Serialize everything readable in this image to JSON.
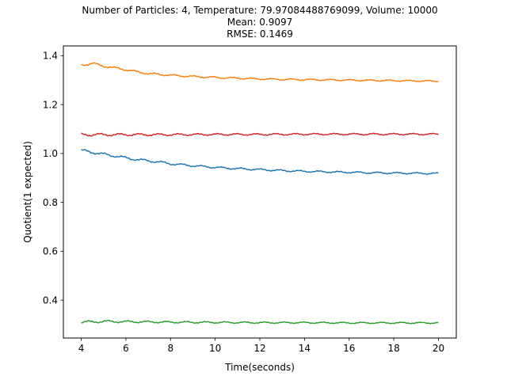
{
  "chart_data": {
    "type": "line",
    "title_lines": [
      "Number of Particles: 4, Temperature: 79.97084488769099, Volume: 10000",
      "Mean: 0.9097",
      "RMSE: 0.1469"
    ],
    "xlabel": "Time(seconds)",
    "ylabel": "Quotient(1 expected)",
    "xlim": [
      3.2,
      20.8
    ],
    "ylim": [
      0.245,
      1.44
    ],
    "xticks": [
      4,
      6,
      8,
      10,
      12,
      14,
      16,
      18,
      20
    ],
    "xtick_labels": [
      "4",
      "6",
      "8",
      "10",
      "12",
      "14",
      "16",
      "18",
      "20"
    ],
    "yticks": [
      0.4,
      0.6,
      0.8,
      1.0,
      1.2,
      1.4
    ],
    "ytick_labels": [
      "0.4",
      "0.6",
      "0.8",
      "1.0",
      "1.2",
      "1.4"
    ],
    "grid": false,
    "legend": "none",
    "x_range": [
      4,
      20
    ],
    "series": [
      {
        "color": "#ff7f0e",
        "x": [
          4,
          4.5,
          5,
          5.5,
          6,
          6.5,
          7,
          8,
          9,
          10,
          11,
          12,
          13,
          14,
          15,
          16,
          17,
          18,
          19,
          20
        ],
        "values": [
          1.363,
          1.368,
          1.358,
          1.35,
          1.343,
          1.334,
          1.327,
          1.32,
          1.315,
          1.311,
          1.308,
          1.305,
          1.303,
          1.302,
          1.301,
          1.3,
          1.299,
          1.298,
          1.297,
          1.296
        ],
        "noise": 0.006
      },
      {
        "color": "#d62728",
        "x": [
          4,
          5,
          6,
          8,
          10,
          12,
          14,
          16,
          18,
          20
        ],
        "values": [
          1.077,
          1.077,
          1.077,
          1.077,
          1.078,
          1.078,
          1.079,
          1.079,
          1.079,
          1.079
        ],
        "noise": 0.007
      },
      {
        "color": "#1f77b4",
        "x": [
          4,
          4.5,
          5,
          5.5,
          6,
          6.5,
          7,
          7.5,
          8,
          9,
          10,
          11,
          12,
          13,
          14,
          15,
          16,
          17,
          18,
          19,
          20
        ],
        "values": [
          1.012,
          1.005,
          0.997,
          0.99,
          0.982,
          0.975,
          0.97,
          0.965,
          0.958,
          0.95,
          0.943,
          0.938,
          0.934,
          0.93,
          0.927,
          0.925,
          0.923,
          0.921,
          0.92,
          0.919,
          0.918
        ],
        "noise": 0.007
      },
      {
        "color": "#2ca02c",
        "x": [
          4,
          5,
          6,
          8,
          10,
          12,
          14,
          16,
          18,
          20
        ],
        "values": [
          0.31,
          0.313,
          0.312,
          0.31,
          0.309,
          0.308,
          0.308,
          0.307,
          0.307,
          0.307
        ],
        "noise": 0.006
      }
    ]
  }
}
